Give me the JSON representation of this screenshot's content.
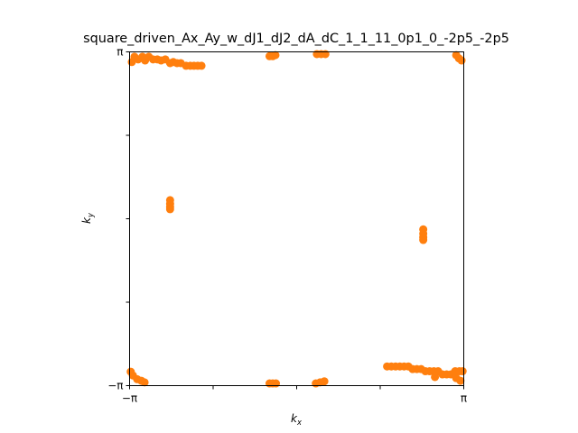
{
  "chart_data": {
    "type": "scatter",
    "title": "square_driven_Ax_Ay_w_dJ1_dJ2_dA_dC_1_1_11_0p1_0_-2p5_-2p5",
    "xlabel": {
      "base": "k",
      "sub": "x"
    },
    "ylabel": {
      "base": "k",
      "sub": "y"
    },
    "xlim": [
      -3.14159,
      3.14159
    ],
    "ylim": [
      -3.14159,
      3.14159
    ],
    "xticks": [
      {
        "value": -3.14159,
        "label": "−π"
      },
      {
        "value": -1.5708,
        "label": ""
      },
      {
        "value": 0,
        "label": ""
      },
      {
        "value": 1.5708,
        "label": ""
      },
      {
        "value": 3.14159,
        "label": "π"
      }
    ],
    "yticks": [
      {
        "value": -3.14159,
        "label": "−π"
      },
      {
        "value": -1.5708,
        "label": ""
      },
      {
        "value": 0,
        "label": ""
      },
      {
        "value": 1.5708,
        "label": ""
      },
      {
        "value": 3.14159,
        "label": "π"
      }
    ],
    "grid": false,
    "marker_color": "#ff7f0e",
    "series": [
      {
        "points": [
          [
            -3.1,
            2.95
          ],
          [
            -3.05,
            3.05
          ],
          [
            -2.98,
            3.0
          ],
          [
            -2.9,
            3.05
          ],
          [
            -2.85,
            2.98
          ],
          [
            -2.78,
            3.05
          ],
          [
            -2.7,
            3.0
          ],
          [
            -2.62,
            3.0
          ],
          [
            -2.55,
            2.98
          ],
          [
            -2.47,
            3.0
          ],
          [
            -2.38,
            2.93
          ],
          [
            -2.32,
            2.95
          ],
          [
            -2.25,
            2.93
          ],
          [
            -2.18,
            2.93
          ],
          [
            -2.08,
            2.88
          ],
          [
            -2.0,
            2.88
          ],
          [
            -1.93,
            2.88
          ],
          [
            -1.86,
            2.88
          ],
          [
            -1.79,
            2.88
          ],
          [
            -0.51,
            3.06
          ],
          [
            -0.45,
            3.06
          ],
          [
            -0.4,
            3.08
          ],
          [
            0.38,
            3.1
          ],
          [
            0.46,
            3.1
          ],
          [
            0.54,
            3.1
          ],
          [
            3.0,
            3.08
          ],
          [
            3.05,
            3.02
          ],
          [
            3.1,
            2.98
          ],
          [
            -2.38,
            0.35
          ],
          [
            -2.38,
            0.28
          ],
          [
            -2.38,
            0.22
          ],
          [
            -2.38,
            0.18
          ],
          [
            2.38,
            -0.2
          ],
          [
            2.38,
            -0.28
          ],
          [
            2.38,
            -0.35
          ],
          [
            2.38,
            -0.4
          ],
          [
            1.7,
            -2.78
          ],
          [
            1.78,
            -2.78
          ],
          [
            1.86,
            -2.78
          ],
          [
            1.94,
            -2.78
          ],
          [
            2.02,
            -2.78
          ],
          [
            2.1,
            -2.78
          ],
          [
            2.18,
            -2.83
          ],
          [
            2.26,
            -2.83
          ],
          [
            2.34,
            -2.83
          ],
          [
            2.42,
            -2.87
          ],
          [
            2.5,
            -2.87
          ],
          [
            2.58,
            -2.87
          ],
          [
            2.66,
            -2.87
          ],
          [
            2.74,
            -2.93
          ],
          [
            2.82,
            -2.93
          ],
          [
            2.9,
            -2.93
          ],
          [
            2.98,
            -2.87
          ],
          [
            3.06,
            -2.87
          ],
          [
            3.12,
            -2.87
          ],
          [
            3.0,
            -3.0
          ],
          [
            3.08,
            -3.05
          ],
          [
            2.6,
            -2.98
          ],
          [
            -3.12,
            -2.88
          ],
          [
            -3.08,
            -2.95
          ],
          [
            -3.0,
            -3.02
          ],
          [
            -2.92,
            -3.05
          ],
          [
            -2.86,
            -3.08
          ],
          [
            -0.51,
            -3.1
          ],
          [
            -0.45,
            -3.1
          ],
          [
            -0.39,
            -3.1
          ],
          [
            0.36,
            -3.1
          ],
          [
            0.44,
            -3.08
          ],
          [
            0.52,
            -3.06
          ]
        ]
      }
    ]
  }
}
